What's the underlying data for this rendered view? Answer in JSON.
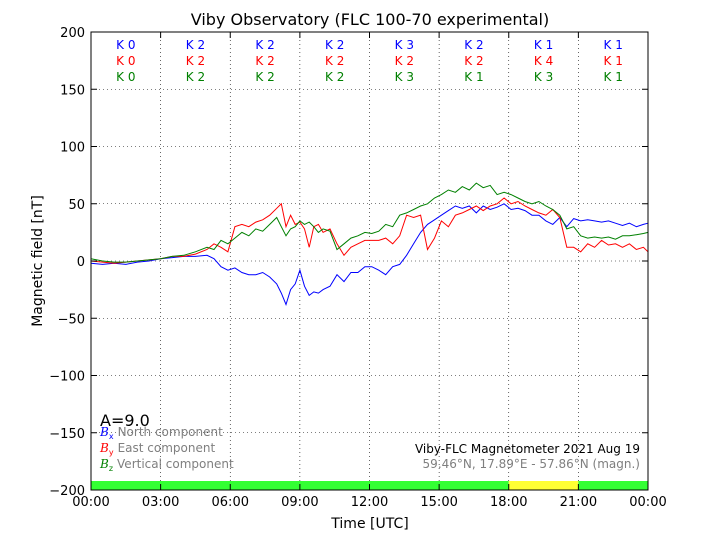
{
  "chart_data": {
    "type": "line",
    "title": "Viby Observatory (FLC 100-70 experimental)",
    "xlabel": "Time [UTC]",
    "ylabel": "Magnetic field [nT]",
    "xlim": [
      0,
      24
    ],
    "ylim": [
      -200,
      200
    ],
    "grid": true,
    "x_ticks": [
      {
        "v": 0,
        "label": "00:00"
      },
      {
        "v": 3,
        "label": "03:00"
      },
      {
        "v": 6,
        "label": "06:00"
      },
      {
        "v": 9,
        "label": "09:00"
      },
      {
        "v": 12,
        "label": "12:00"
      },
      {
        "v": 15,
        "label": "15:00"
      },
      {
        "v": 18,
        "label": "18:00"
      },
      {
        "v": 21,
        "label": "21:00"
      },
      {
        "v": 24,
        "label": "00:00"
      }
    ],
    "y_ticks": [
      {
        "v": 200,
        "label": "200"
      },
      {
        "v": 150,
        "label": "150"
      },
      {
        "v": 100,
        "label": "100"
      },
      {
        "v": 50,
        "label": "50"
      },
      {
        "v": 0,
        "label": "0"
      },
      {
        "v": -50,
        "label": "−50"
      },
      {
        "v": -100,
        "label": "−100"
      },
      {
        "v": -150,
        "label": "−150"
      },
      {
        "v": -200,
        "label": "−200"
      }
    ],
    "k_indices": [
      {
        "color": "#0000ff",
        "labels": [
          "K 0",
          "K 2",
          "K 2",
          "K 2",
          "K 3",
          "K 2",
          "K 1",
          "K 1"
        ]
      },
      {
        "color": "#ff0000",
        "labels": [
          "K 0",
          "K 2",
          "K 2",
          "K 2",
          "K 2",
          "K 2",
          "K 4",
          "K 1"
        ]
      },
      {
        "color": "#008000",
        "labels": [
          "K 0",
          "K 2",
          "K 2",
          "K 2",
          "K 3",
          "K 1",
          "K 3",
          "K 1"
        ]
      }
    ],
    "a_index": "A=9.0",
    "legend": {
      "position": "lower-left",
      "entries": [
        {
          "symbol": "B",
          "sub": "x",
          "label": "North component",
          "color": "#0000ff"
        },
        {
          "symbol": "B",
          "sub": "y",
          "label": "East component",
          "color": "#ff0000"
        },
        {
          "symbol": "B",
          "sub": "z",
          "label": "Vertical component",
          "color": "#008000"
        }
      ]
    },
    "info_line1": "Viby-FLC Magnetometer 2021 Aug 19",
    "info_line2": "59.46°N, 17.89°E - 57.86°N (magn.)",
    "activity_bar": [
      {
        "from": 0,
        "to": 18,
        "color": "#33ff33"
      },
      {
        "from": 18,
        "to": 21,
        "color": "#ffff33"
      },
      {
        "from": 21,
        "to": 24,
        "color": "#33ff33"
      }
    ],
    "series": [
      {
        "color": "#0000ff",
        "x": [
          0,
          0.5,
          1,
          1.5,
          2,
          2.5,
          3,
          3.5,
          4,
          4.5,
          5,
          5.3,
          5.6,
          5.9,
          6.2,
          6.5,
          6.8,
          7.1,
          7.4,
          7.7,
          8,
          8.2,
          8.4,
          8.6,
          8.8,
          9,
          9.2,
          9.4,
          9.6,
          9.8,
          10,
          10.3,
          10.6,
          10.9,
          11.2,
          11.5,
          11.8,
          12.1,
          12.4,
          12.7,
          13,
          13.3,
          13.6,
          13.9,
          14.2,
          14.5,
          14.8,
          15.1,
          15.4,
          15.7,
          16,
          16.3,
          16.6,
          16.9,
          17.2,
          17.5,
          17.8,
          18.1,
          18.4,
          18.7,
          19,
          19.3,
          19.6,
          19.9,
          20.2,
          20.5,
          20.8,
          21.1,
          21.4,
          21.7,
          22,
          22.3,
          22.6,
          22.9,
          23.2,
          23.5,
          23.8,
          24
        ],
        "y": [
          -2,
          -3,
          -2,
          -3,
          -1,
          0,
          2,
          3,
          4,
          4,
          5,
          2,
          -5,
          -8,
          -6,
          -10,
          -12,
          -12,
          -10,
          -14,
          -20,
          -28,
          -38,
          -25,
          -20,
          -8,
          -22,
          -30,
          -27,
          -28,
          -25,
          -22,
          -12,
          -18,
          -10,
          -10,
          -5,
          -5,
          -8,
          -12,
          -5,
          -3,
          5,
          15,
          25,
          32,
          36,
          40,
          44,
          48,
          46,
          48,
          42,
          48,
          45,
          47,
          50,
          45,
          46,
          44,
          40,
          40,
          35,
          32,
          38,
          30,
          37,
          35,
          36,
          35,
          34,
          35,
          33,
          31,
          33,
          30,
          32,
          33
        ]
      },
      {
        "color": "#ff0000",
        "x": [
          0,
          0.5,
          1,
          1.5,
          2,
          2.5,
          3,
          3.5,
          4,
          4.5,
          5,
          5.3,
          5.6,
          5.9,
          6.2,
          6.5,
          6.8,
          7.1,
          7.4,
          7.7,
          8,
          8.2,
          8.4,
          8.6,
          8.8,
          9,
          9.2,
          9.4,
          9.6,
          9.8,
          10,
          10.3,
          10.6,
          10.9,
          11.2,
          11.5,
          11.8,
          12.1,
          12.4,
          12.7,
          13,
          13.3,
          13.6,
          13.9,
          14.2,
          14.5,
          14.8,
          15.1,
          15.4,
          15.7,
          16,
          16.3,
          16.6,
          16.9,
          17.2,
          17.5,
          17.8,
          18.1,
          18.4,
          18.7,
          19,
          19.3,
          19.6,
          19.9,
          20.2,
          20.5,
          20.8,
          21.1,
          21.4,
          21.7,
          22,
          22.3,
          22.6,
          22.9,
          23.2,
          23.5,
          23.8,
          24
        ],
        "y": [
          0,
          -1,
          -2,
          -1,
          0,
          1,
          2,
          4,
          4,
          6,
          10,
          15,
          12,
          8,
          30,
          32,
          30,
          34,
          36,
          40,
          46,
          50,
          30,
          40,
          32,
          34,
          28,
          12,
          30,
          32,
          25,
          28,
          15,
          5,
          12,
          15,
          18,
          18,
          18,
          20,
          15,
          22,
          40,
          38,
          40,
          10,
          20,
          35,
          30,
          40,
          42,
          45,
          48,
          44,
          48,
          50,
          55,
          50,
          52,
          48,
          45,
          42,
          40,
          45,
          38,
          12,
          12,
          8,
          15,
          12,
          18,
          14,
          15,
          12,
          15,
          10,
          12,
          8
        ]
      },
      {
        "color": "#008000",
        "x": [
          0,
          0.5,
          1,
          1.5,
          2,
          2.5,
          3,
          3.5,
          4,
          4.5,
          5,
          5.3,
          5.6,
          5.9,
          6.2,
          6.5,
          6.8,
          7.1,
          7.4,
          7.7,
          8,
          8.2,
          8.4,
          8.6,
          8.8,
          9,
          9.2,
          9.4,
          9.6,
          9.8,
          10,
          10.3,
          10.6,
          10.9,
          11.2,
          11.5,
          11.8,
          12.1,
          12.4,
          12.7,
          13,
          13.3,
          13.6,
          13.9,
          14.2,
          14.5,
          14.8,
          15.1,
          15.4,
          15.7,
          16,
          16.3,
          16.6,
          16.9,
          17.2,
          17.5,
          17.8,
          18.1,
          18.4,
          18.7,
          19,
          19.3,
          19.6,
          19.9,
          20.2,
          20.5,
          20.8,
          21.1,
          21.4,
          21.7,
          22,
          22.3,
          22.6,
          22.9,
          23.2,
          23.5,
          23.8,
          24
        ],
        "y": [
          2,
          0,
          -1,
          -1,
          0,
          1,
          2,
          4,
          5,
          8,
          12,
          10,
          18,
          15,
          20,
          25,
          22,
          28,
          26,
          32,
          38,
          30,
          22,
          28,
          30,
          35,
          32,
          34,
          30,
          25,
          28,
          26,
          10,
          15,
          20,
          22,
          25,
          24,
          26,
          32,
          30,
          40,
          42,
          45,
          48,
          50,
          55,
          58,
          62,
          60,
          65,
          62,
          68,
          64,
          66,
          58,
          60,
          58,
          55,
          52,
          50,
          52,
          48,
          45,
          40,
          28,
          30,
          22,
          20,
          21,
          20,
          21,
          19,
          22,
          22,
          23,
          24,
          25
        ]
      }
    ]
  }
}
